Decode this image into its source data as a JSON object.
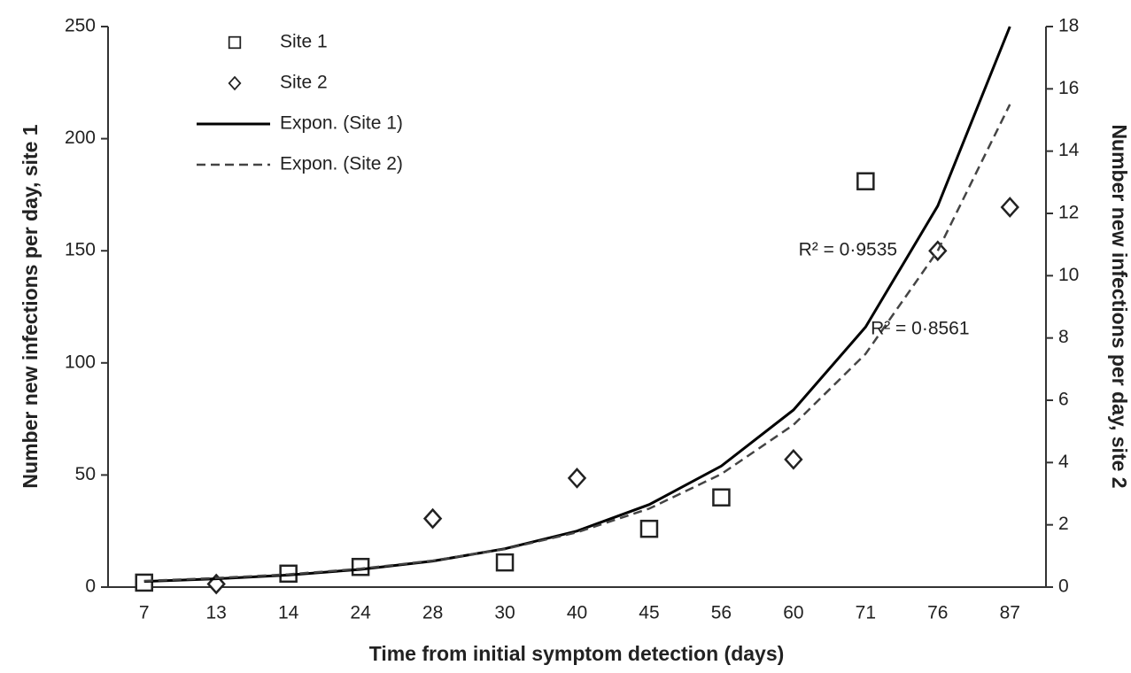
{
  "chart_data": {
    "type": "scatter",
    "xlabel": "Time from initial symptom detection (days)",
    "ylabel": "Number new infections per day, site 1",
    "y2label": "Number new infections per day, site 2",
    "categories": [
      "7",
      "13",
      "14",
      "24",
      "28",
      "30",
      "40",
      "45",
      "56",
      "60",
      "71",
      "76",
      "87"
    ],
    "ylim": [
      0,
      250
    ],
    "yticks": [
      0,
      50,
      100,
      150,
      200,
      250
    ],
    "y2lim": [
      0,
      18
    ],
    "y2ticks": [
      0,
      2,
      4,
      6,
      8,
      10,
      12,
      14,
      16,
      18
    ],
    "grid": false,
    "legend": "upper left",
    "series": [
      {
        "name": "Site 1",
        "color": "#222222",
        "marker": "square",
        "values": [
          2,
          null,
          6,
          9,
          null,
          11,
          null,
          26,
          40,
          null,
          181,
          null,
          null
        ]
      },
      {
        "name": "Site 2",
        "color": "#222222",
        "marker": "diamond",
        "axis": "y2",
        "values": [
          null,
          0.1,
          null,
          null,
          2.2,
          null,
          3.5,
          null,
          null,
          4.1,
          null,
          10.8,
          12.2
        ]
      },
      {
        "name": "Expon. (Site 1)",
        "color": "#000000",
        "line_style": "solid",
        "values": [
          2.5,
          3.7,
          5.4,
          7.9,
          11.6,
          17.1,
          25,
          36.8,
          54,
          79,
          116,
          170,
          250
        ]
      },
      {
        "name": "Expon. (Site 2)",
        "color": "#444444",
        "line_style": "dashed",
        "axis": "y2",
        "values": [
          0.2,
          0.29,
          0.41,
          0.59,
          0.85,
          1.22,
          1.76,
          2.52,
          3.63,
          5.21,
          7.49,
          10.8,
          15.5
        ]
      }
    ],
    "annotations": [
      {
        "text": "R² = 0·9535",
        "x": "71",
        "y": 150
      },
      {
        "text": "R² = 0·8561",
        "x": "76",
        "y": 115
      }
    ]
  }
}
